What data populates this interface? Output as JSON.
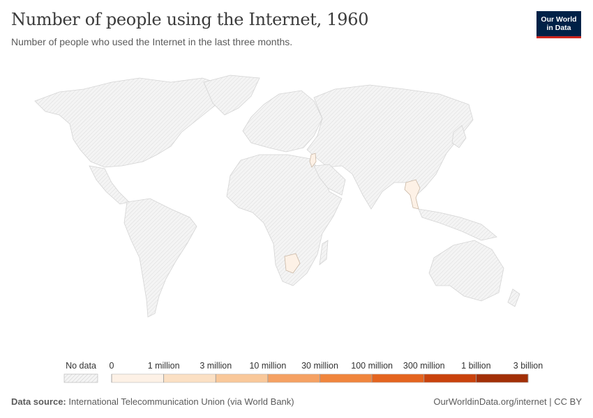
{
  "header": {
    "title": "Number of people using the Internet, 1960",
    "subtitle": "Number of people who used the Internet in the last three months.",
    "logo_line1": "Our World",
    "logo_line2": "in Data"
  },
  "legend": {
    "no_data_label": "No data",
    "bins": [
      {
        "label": "0",
        "color": "#fdf1e6"
      },
      {
        "label": "1 million",
        "color": "#fbe0c4"
      },
      {
        "label": "3 million",
        "color": "#f9c89a"
      },
      {
        "label": "10 million",
        "color": "#f5a163"
      },
      {
        "label": "30 million",
        "color": "#f0853d"
      },
      {
        "label": "100 million",
        "color": "#e4641f"
      },
      {
        "label": "300 million",
        "color": "#c9420c"
      },
      {
        "label": "1 billion",
        "color": "#a22f07"
      },
      {
        "label": "3 billion",
        "color": null
      }
    ]
  },
  "map": {
    "year": "1960",
    "countries_with_data": [
      "Israel",
      "Thailand",
      "Botswana"
    ],
    "data_color": "#fdf1e6",
    "no_data_fill": "#efefef"
  },
  "footer": {
    "source_label": "Data source:",
    "source": "International Telecommunication Union (via World Bank)",
    "link": "OurWorldinData.org/internet | CC BY"
  }
}
